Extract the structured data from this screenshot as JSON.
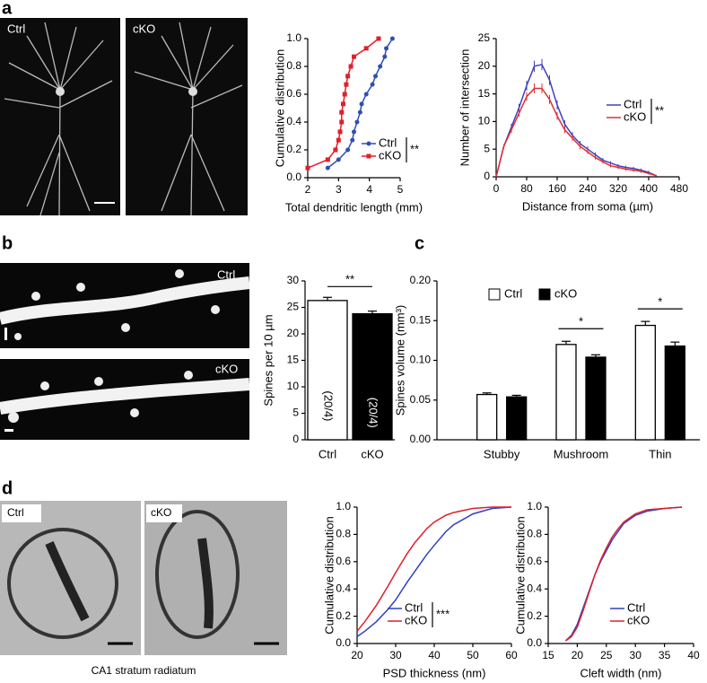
{
  "figure": {
    "panel_labels": [
      "a",
      "b",
      "c",
      "d"
    ],
    "image_labels": {
      "a": [
        "Ctrl",
        "cKO"
      ],
      "b": [
        "Ctrl",
        "cKO"
      ],
      "d": [
        "Ctrl",
        "cKO"
      ]
    },
    "caption_d": "CA1 stratum radiatum"
  },
  "chart_data": [
    {
      "type": "line",
      "xlabel": "Total dendritic length (mm)",
      "ylabel": "Cumulative distribution",
      "xlim": [
        2,
        5
      ],
      "xticks": [
        2,
        3,
        4,
        5
      ],
      "ylim": [
        0,
        1
      ],
      "yticks": [
        {
          "value": 0,
          "label": "0.0"
        },
        0.2,
        0.4,
        0.6,
        0.8,
        {
          "value": 1,
          "label": "1.0"
        }
      ],
      "markers": true,
      "legend": "lower right",
      "significance": "**",
      "series": [
        {
          "name": "Ctrl",
          "color": "#3050b0",
          "marker": "circle",
          "x": [
            2.65,
            3.0,
            3.3,
            3.45,
            3.5,
            3.6,
            3.7,
            3.75,
            3.9,
            4.1,
            4.2,
            4.35,
            4.5,
            4.55,
            4.75
          ],
          "values": [
            0.07,
            0.13,
            0.2,
            0.27,
            0.33,
            0.4,
            0.47,
            0.53,
            0.6,
            0.67,
            0.73,
            0.8,
            0.87,
            0.93,
            1.0
          ]
        },
        {
          "name": "cKO",
          "color": "#e0202a",
          "marker": "square",
          "x": [
            2.0,
            2.65,
            2.9,
            3.0,
            3.05,
            3.1,
            3.1,
            3.15,
            3.2,
            3.25,
            3.3,
            3.4,
            3.5,
            3.9,
            4.3
          ],
          "values": [
            0.07,
            0.13,
            0.2,
            0.27,
            0.33,
            0.4,
            0.47,
            0.53,
            0.6,
            0.67,
            0.73,
            0.8,
            0.87,
            0.93,
            1.0
          ]
        }
      ]
    },
    {
      "type": "line",
      "xlabel": "Distance from soma (µm)",
      "ylabel": "Number of intersection",
      "xlim": [
        0,
        480
      ],
      "xticks": [
        0,
        80,
        160,
        240,
        320,
        400,
        480
      ],
      "ylim": [
        0,
        25
      ],
      "yticks": [
        0,
        5,
        10,
        15,
        20,
        25
      ],
      "markers": false,
      "legend": "center right",
      "significance": "**",
      "x": [
        0,
        20,
        40,
        60,
        80,
        100,
        120,
        140,
        160,
        180,
        200,
        220,
        240,
        260,
        280,
        300,
        320,
        340,
        360,
        380,
        400,
        420
      ],
      "series": [
        {
          "name": "Ctrl",
          "color": "#4040c0",
          "values": [
            0,
            5.5,
            9,
            12.5,
            16.5,
            20,
            20.3,
            17.5,
            13,
            9.5,
            7.5,
            6,
            5,
            4,
            3,
            2.5,
            2,
            1.7,
            1.5,
            1.2,
            0.8,
            0.2
          ],
          "errors": [
            0,
            0.4,
            0.6,
            0.7,
            0.9,
            1,
            1,
            0.9,
            0.8,
            0.7,
            0.6,
            0.5,
            0.5,
            0.4,
            0.4,
            0.3,
            0.3,
            0.3,
            0.3,
            0.3,
            0.3,
            0.1
          ]
        },
        {
          "name": "cKO",
          "color": "#e03030",
          "values": [
            0,
            5.5,
            8.5,
            11.5,
            14.5,
            16,
            16,
            14,
            11,
            8.5,
            7,
            5.5,
            4.5,
            3.5,
            2.7,
            2,
            1.7,
            1.4,
            1.2,
            1,
            0.6,
            0.2
          ],
          "errors": [
            0,
            0.4,
            0.5,
            0.6,
            0.8,
            0.9,
            0.9,
            0.8,
            0.7,
            0.6,
            0.5,
            0.5,
            0.4,
            0.4,
            0.3,
            0.3,
            0.3,
            0.3,
            0.3,
            0.3,
            0.2,
            0.1
          ]
        }
      ]
    },
    {
      "type": "bar",
      "ylabel": "Spines per 10 µm",
      "categories": [
        "Ctrl",
        "cKO"
      ],
      "values": [
        26.3,
        23.8
      ],
      "errors": [
        0.6,
        0.5
      ],
      "colors": [
        "#ffffff",
        "#000000"
      ],
      "bar_labels": [
        "(20/4)",
        "(20/4)"
      ],
      "ylim": [
        0,
        30
      ],
      "yticks": [
        0,
        5,
        10,
        15,
        20,
        25,
        30
      ],
      "significance": "**"
    },
    {
      "type": "bar",
      "ylabel": "Spines volume (mm³)",
      "categories": [
        "Stubby",
        "Mushroom",
        "Thin"
      ],
      "ylim": [
        0,
        0.2
      ],
      "yticks": [
        {
          "value": 0,
          "label": "0.00"
        },
        {
          "value": 0.05,
          "label": "0.05"
        },
        {
          "value": 0.1,
          "label": "0.10"
        },
        {
          "value": 0.15,
          "label": "0.15"
        },
        {
          "value": 0.2,
          "label": "0.20"
        }
      ],
      "legend": "upper left",
      "significance": [
        "*",
        "*"
      ],
      "series": [
        {
          "name": "Ctrl",
          "color": "#ffffff",
          "values": [
            0.057,
            0.12,
            0.144
          ],
          "errors": [
            0.002,
            0.004,
            0.005
          ]
        },
        {
          "name": "cKO",
          "color": "#000000",
          "values": [
            0.054,
            0.104,
            0.118
          ],
          "errors": [
            0.002,
            0.003,
            0.005
          ]
        }
      ]
    },
    {
      "type": "line",
      "xlabel": "PSD thickness (nm)",
      "ylabel": "Cumulative distribution",
      "xlim": [
        20,
        60
      ],
      "xticks": [
        20,
        30,
        40,
        50,
        60
      ],
      "ylim": [
        0,
        1
      ],
      "yticks": [
        {
          "value": 0,
          "label": "0.0"
        },
        0.2,
        0.4,
        0.6,
        0.8,
        {
          "value": 1,
          "label": "1.0"
        }
      ],
      "markers": false,
      "legend": "lower right",
      "significance": "***",
      "x": [
        20,
        22,
        25,
        28,
        30,
        33,
        35,
        38,
        40,
        43,
        45,
        50,
        55,
        60
      ],
      "series": [
        {
          "name": "Ctrl",
          "color": "#3040c0",
          "values": [
            0.05,
            0.09,
            0.16,
            0.25,
            0.32,
            0.45,
            0.53,
            0.65,
            0.72,
            0.82,
            0.87,
            0.95,
            0.99,
            1.0
          ]
        },
        {
          "name": "cKO",
          "color": "#e0202a",
          "values": [
            0.09,
            0.16,
            0.28,
            0.42,
            0.52,
            0.66,
            0.74,
            0.84,
            0.89,
            0.94,
            0.96,
            0.99,
            1.0,
            1.0
          ]
        }
      ]
    },
    {
      "type": "line",
      "xlabel": "Cleft width (nm)",
      "ylabel": "Cumulative distribution",
      "xlim": [
        15,
        40
      ],
      "xticks": [
        15,
        20,
        25,
        30,
        35,
        40
      ],
      "ylim": [
        0,
        1
      ],
      "yticks": [
        {
          "value": 0,
          "label": "0.0"
        },
        0.2,
        0.4,
        0.6,
        0.8,
        {
          "value": 1,
          "label": "1.0"
        }
      ],
      "markers": false,
      "legend": "lower right",
      "x": [
        18,
        19,
        20,
        21,
        22,
        23,
        24,
        25,
        26,
        27,
        28,
        30,
        32,
        35,
        38
      ],
      "series": [
        {
          "name": "Ctrl",
          "color": "#3040c0",
          "values": [
            0.02,
            0.06,
            0.14,
            0.26,
            0.38,
            0.5,
            0.6,
            0.68,
            0.76,
            0.82,
            0.88,
            0.94,
            0.97,
            0.99,
            1.0
          ]
        },
        {
          "name": "cKO",
          "color": "#e0202a",
          "values": [
            0.02,
            0.05,
            0.12,
            0.24,
            0.37,
            0.5,
            0.61,
            0.7,
            0.78,
            0.84,
            0.89,
            0.95,
            0.98,
            0.99,
            1.0
          ]
        }
      ]
    }
  ]
}
